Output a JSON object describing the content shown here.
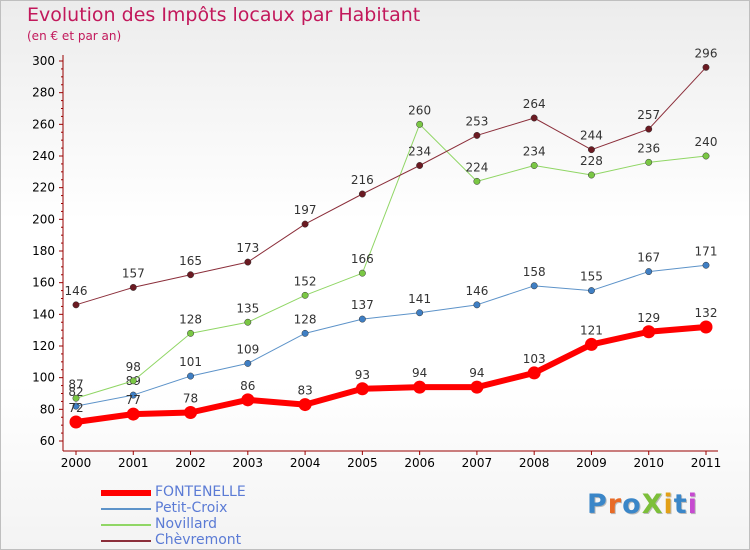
{
  "page": {
    "title": "Evolution des Impôts locaux par Habitant",
    "subtitle": "(en € et par an)"
  },
  "logo": {
    "text": "ProXiti",
    "colors": [
      "#3a86c8",
      "#e86a26",
      "#3a86c8",
      "#7cbf3a",
      "#e2a017",
      "#3a86c8",
      "#c64ad0"
    ]
  },
  "colors": {
    "title": "#c2185b",
    "axis": "#990000",
    "legend_text": "#5b7bd5"
  },
  "chart_data": {
    "type": "line",
    "title": "Evolution des Impôts locaux par Habitant",
    "subtitle": "(en € et par an)",
    "x": [
      "2000",
      "2001",
      "2002",
      "2003",
      "2004",
      "2005",
      "2006",
      "2007",
      "2008",
      "2009",
      "2010",
      "2011"
    ],
    "ylim": [
      60,
      300
    ],
    "yticks": [
      60,
      80,
      100,
      120,
      140,
      160,
      180,
      200,
      220,
      240,
      260,
      280,
      300
    ],
    "grid": false,
    "legend_position": "bottom-left",
    "series": [
      {
        "name": "FONTENELLE",
        "color": "#ff0000",
        "dot": "#ff0000",
        "width": 6,
        "marker": 6.5,
        "values": [
          72,
          77,
          78,
          86,
          83,
          93,
          94,
          94,
          103,
          121,
          129,
          132
        ]
      },
      {
        "name": "Petit-Croix",
        "color": "#5d93c9",
        "dot": "#3f7fc4",
        "width": 1,
        "marker": 3.2,
        "values": [
          82,
          89,
          101,
          109,
          128,
          137,
          141,
          146,
          158,
          155,
          167,
          171
        ]
      },
      {
        "name": "Novillard",
        "color": "#90d665",
        "dot": "#7ac744",
        "width": 1,
        "marker": 3.2,
        "values": [
          87,
          98,
          128,
          135,
          152,
          166,
          260,
          224,
          234,
          228,
          236,
          240
        ]
      },
      {
        "name": "Chèvremont",
        "color": "#8b2e3a",
        "dot": "#6b1a22",
        "width": 1,
        "marker": 3.2,
        "values": [
          146,
          157,
          165,
          173,
          197,
          216,
          234,
          253,
          264,
          244,
          257,
          296
        ]
      }
    ]
  }
}
